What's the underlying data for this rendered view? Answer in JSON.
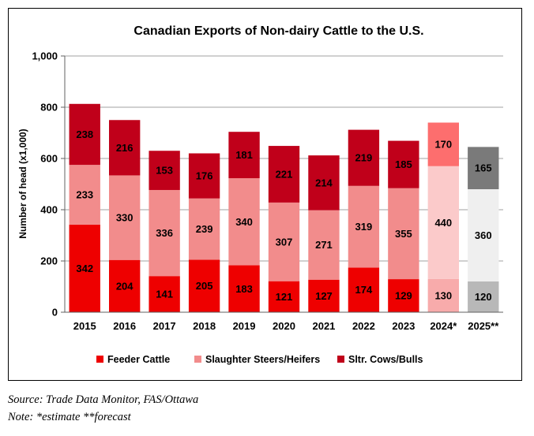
{
  "chart_data": {
    "type": "bar",
    "stacked": true,
    "title": "Canadian  Exports of Non-dairy Cattle to the U.S.",
    "ylabel": "Number of head (x1,000)",
    "xlabel": "",
    "ylim": [
      0,
      1000
    ],
    "yticks": [
      "0",
      "200",
      "400",
      "600",
      "800",
      "1,000"
    ],
    "ytick_values": [
      0,
      200,
      400,
      600,
      800,
      1000
    ],
    "grid": true,
    "legend_position": "bottom",
    "categories": [
      "2015",
      "2016",
      "2017",
      "2018",
      "2019",
      "2020",
      "2021",
      "2022",
      "2023",
      "2024*",
      "2025**"
    ],
    "series": [
      {
        "name": "Feeder Cattle",
        "color": "#ee0000",
        "values": [
          342,
          204,
          141,
          205,
          183,
          121,
          127,
          174,
          129,
          130,
          120
        ]
      },
      {
        "name": "Slaughter Steers/Heifers",
        "color": "#f28c8c",
        "values": [
          233,
          330,
          336,
          239,
          340,
          307,
          271,
          319,
          355,
          440,
          360
        ]
      },
      {
        "name": "Sltr. Cows/Bulls",
        "color": "#c0001a",
        "values": [
          238,
          216,
          153,
          176,
          181,
          221,
          214,
          219,
          185,
          170,
          165
        ]
      }
    ],
    "override_colors": {
      "2024*": [
        "#f8abab",
        "#fbcaca",
        "#fd6e6e"
      ],
      "2025**": [
        "#b8b8b8",
        "#efefef",
        "#7a7a7a"
      ]
    }
  },
  "footer": {
    "source": "Source: Trade Data Monitor, FAS/Ottawa",
    "note": "Note: *estimate **forecast"
  }
}
